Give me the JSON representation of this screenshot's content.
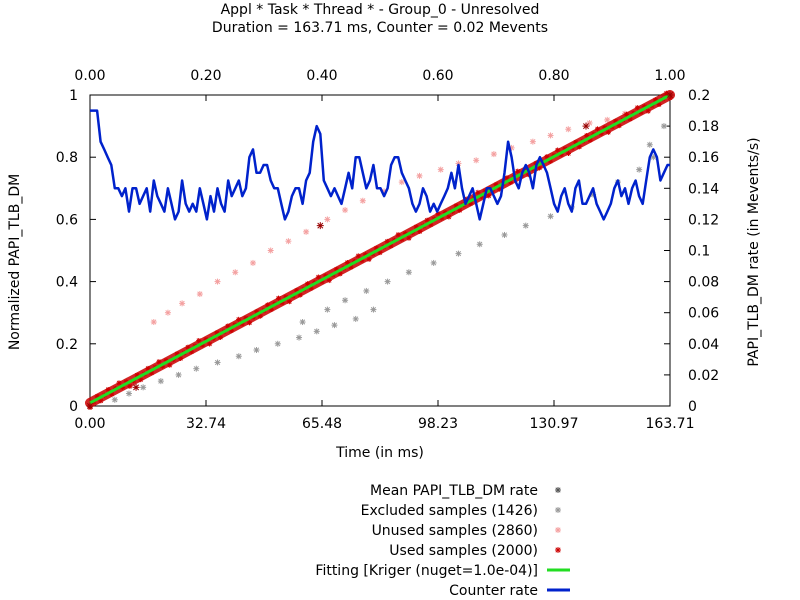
{
  "chart_data": {
    "type": "scatter",
    "title_line1": "Appl * Task * Thread * - Group_0 - Unresolved",
    "title_line2": "Duration = 163.71 ms, Counter = 0.02 Mevents",
    "xlabel": "Time (in ms)",
    "ylabel_left": "Normalized PAPI_TLB_DM",
    "ylabel_right": "PAPI_TLB_DM rate (in Mevents/s)",
    "xlim": [
      0,
      163.71
    ],
    "ylim_left": [
      0,
      1
    ],
    "ylim_right": [
      0,
      0.2
    ],
    "x_ticks": [
      "0.00",
      "32.74",
      "65.48",
      "98.23",
      "130.97",
      "163.71"
    ],
    "x2_ticks": [
      "0.00",
      "0.20",
      "0.40",
      "0.60",
      "0.80",
      "1.00"
    ],
    "y_left_ticks": [
      "0",
      "0.2",
      "0.4",
      "0.6",
      "0.8",
      "1"
    ],
    "y_right_ticks": [
      "0",
      "0.02",
      "0.04",
      "0.06",
      "0.08",
      "0.1",
      "0.12",
      "0.14",
      "0.16",
      "0.18",
      "0.2"
    ],
    "legend_position": "bottom-right-below",
    "series": [
      {
        "name": "Mean PAPI_TLB_DM rate",
        "kind": "marker",
        "color": "#555555",
        "points": []
      },
      {
        "name": "Excluded samples (1426)",
        "kind": "marker",
        "color": "#999999",
        "points": [
          [
            7,
            0.02
          ],
          [
            11,
            0.04
          ],
          [
            15,
            0.06
          ],
          [
            20,
            0.08
          ],
          [
            25,
            0.1
          ],
          [
            30,
            0.12
          ],
          [
            36,
            0.14
          ],
          [
            42,
            0.16
          ],
          [
            47,
            0.18
          ],
          [
            53,
            0.2
          ],
          [
            59,
            0.22
          ],
          [
            64,
            0.24
          ],
          [
            69,
            0.26
          ],
          [
            75,
            0.28
          ],
          [
            80,
            0.31
          ],
          [
            60,
            0.27
          ],
          [
            67,
            0.31
          ],
          [
            72,
            0.34
          ],
          [
            78,
            0.37
          ],
          [
            84,
            0.4
          ],
          [
            90,
            0.43
          ],
          [
            97,
            0.46
          ],
          [
            104,
            0.49
          ],
          [
            110,
            0.52
          ],
          [
            117,
            0.55
          ],
          [
            123,
            0.58
          ],
          [
            130,
            0.61
          ],
          [
            136,
            0.64
          ],
          [
            142,
            0.68
          ],
          [
            149,
            0.72
          ],
          [
            155,
            0.76
          ],
          [
            159,
            0.8
          ],
          [
            158,
            0.84
          ],
          [
            162,
            0.9
          ]
        ]
      },
      {
        "name": "Unused samples (2860)",
        "kind": "marker",
        "color": "#f4a0a0",
        "points": [
          [
            18,
            0.27
          ],
          [
            22,
            0.3
          ],
          [
            26,
            0.33
          ],
          [
            31,
            0.36
          ],
          [
            36,
            0.4
          ],
          [
            41,
            0.43
          ],
          [
            46,
            0.46
          ],
          [
            51,
            0.5
          ],
          [
            56,
            0.53
          ],
          [
            61,
            0.56
          ],
          [
            67,
            0.6
          ],
          [
            72,
            0.63
          ],
          [
            77,
            0.66
          ],
          [
            83,
            0.69
          ],
          [
            88,
            0.72
          ],
          [
            93,
            0.74
          ],
          [
            99,
            0.76
          ],
          [
            104,
            0.78
          ],
          [
            109,
            0.79
          ],
          [
            114,
            0.81
          ],
          [
            119,
            0.83
          ],
          [
            125,
            0.85
          ],
          [
            130,
            0.87
          ],
          [
            135,
            0.89
          ],
          [
            141,
            0.91
          ],
          [
            146,
            0.92
          ],
          [
            151,
            0.94
          ],
          [
            156,
            0.96
          ]
        ]
      },
      {
        "name": "Used samples (2000)",
        "kind": "marker",
        "color": "#cc0000",
        "points": [
          [
            0,
            0
          ],
          [
            163.71,
            1
          ],
          [
            65,
            0.58
          ],
          [
            140,
            0.9
          ],
          [
            13,
            0.06
          ]
        ]
      },
      {
        "name": "Fitting [Kriger (nuget=1.0e-04)]",
        "kind": "line",
        "color": "#22dd22",
        "points": [
          [
            0,
            0.01
          ],
          [
            163.71,
            1
          ]
        ]
      },
      {
        "name": "Counter rate",
        "kind": "line",
        "color": "#0022cc",
        "axis": "right",
        "points": [
          [
            0,
            0.19
          ],
          [
            2,
            0.19
          ],
          [
            3,
            0.17
          ],
          [
            4,
            0.165
          ],
          [
            5,
            0.16
          ],
          [
            6,
            0.155
          ],
          [
            7,
            0.14
          ],
          [
            8,
            0.14
          ],
          [
            9,
            0.135
          ],
          [
            10,
            0.14
          ],
          [
            11,
            0.125
          ],
          [
            12,
            0.14
          ],
          [
            13,
            0.14
          ],
          [
            14,
            0.13
          ],
          [
            15,
            0.135
          ],
          [
            16,
            0.14
          ],
          [
            17,
            0.125
          ],
          [
            18,
            0.145
          ],
          [
            19,
            0.135
          ],
          [
            20,
            0.13
          ],
          [
            21,
            0.125
          ],
          [
            22,
            0.14
          ],
          [
            23,
            0.13
          ],
          [
            24,
            0.12
          ],
          [
            25,
            0.125
          ],
          [
            26,
            0.145
          ],
          [
            27,
            0.13
          ],
          [
            28,
            0.125
          ],
          [
            29,
            0.13
          ],
          [
            30,
            0.125
          ],
          [
            31,
            0.14
          ],
          [
            32,
            0.13
          ],
          [
            33,
            0.12
          ],
          [
            34,
            0.135
          ],
          [
            35,
            0.125
          ],
          [
            36,
            0.14
          ],
          [
            37,
            0.13
          ],
          [
            38,
            0.125
          ],
          [
            39,
            0.145
          ],
          [
            40,
            0.135
          ],
          [
            41,
            0.14
          ],
          [
            42,
            0.145
          ],
          [
            43,
            0.135
          ],
          [
            44,
            0.14
          ],
          [
            45,
            0.16
          ],
          [
            46,
            0.165
          ],
          [
            47,
            0.15
          ],
          [
            48,
            0.15
          ],
          [
            49,
            0.155
          ],
          [
            50,
            0.155
          ],
          [
            51,
            0.145
          ],
          [
            52,
            0.14
          ],
          [
            53,
            0.14
          ],
          [
            54,
            0.13
          ],
          [
            55,
            0.12
          ],
          [
            56,
            0.125
          ],
          [
            57,
            0.135
          ],
          [
            58,
            0.14
          ],
          [
            59,
            0.14
          ],
          [
            60,
            0.13
          ],
          [
            61,
            0.145
          ],
          [
            62,
            0.15
          ],
          [
            63,
            0.17
          ],
          [
            64,
            0.18
          ],
          [
            65,
            0.175
          ],
          [
            66,
            0.145
          ],
          [
            67,
            0.14
          ],
          [
            68,
            0.135
          ],
          [
            69,
            0.14
          ],
          [
            70,
            0.135
          ],
          [
            71,
            0.13
          ],
          [
            72,
            0.14
          ],
          [
            73,
            0.15
          ],
          [
            74,
            0.14
          ],
          [
            75,
            0.16
          ],
          [
            76,
            0.16
          ],
          [
            77,
            0.15
          ],
          [
            78,
            0.14
          ],
          [
            79,
            0.145
          ],
          [
            80,
            0.155
          ],
          [
            81,
            0.14
          ],
          [
            82,
            0.14
          ],
          [
            83,
            0.135
          ],
          [
            84,
            0.14
          ],
          [
            85,
            0.155
          ],
          [
            86,
            0.16
          ],
          [
            87,
            0.16
          ],
          [
            88,
            0.15
          ],
          [
            89,
            0.145
          ],
          [
            90,
            0.14
          ],
          [
            91,
            0.13
          ],
          [
            92,
            0.125
          ],
          [
            93,
            0.13
          ],
          [
            94,
            0.14
          ],
          [
            95,
            0.135
          ],
          [
            96,
            0.125
          ],
          [
            97,
            0.13
          ],
          [
            98,
            0.125
          ],
          [
            99,
            0.13
          ],
          [
            100,
            0.135
          ],
          [
            101,
            0.14
          ],
          [
            102,
            0.15
          ],
          [
            103,
            0.14
          ],
          [
            104,
            0.155
          ],
          [
            105,
            0.14
          ],
          [
            106,
            0.13
          ],
          [
            107,
            0.135
          ],
          [
            108,
            0.14
          ],
          [
            109,
            0.13
          ],
          [
            110,
            0.12
          ],
          [
            111,
            0.13
          ],
          [
            112,
            0.14
          ],
          [
            113,
            0.14
          ],
          [
            114,
            0.135
          ],
          [
            115,
            0.13
          ],
          [
            116,
            0.135
          ],
          [
            117,
            0.15
          ],
          [
            118,
            0.17
          ],
          [
            119,
            0.16
          ],
          [
            120,
            0.145
          ],
          [
            121,
            0.14
          ],
          [
            122,
            0.15
          ],
          [
            123,
            0.155
          ],
          [
            124,
            0.15
          ],
          [
            125,
            0.14
          ],
          [
            126,
            0.155
          ],
          [
            127,
            0.16
          ],
          [
            128,
            0.155
          ],
          [
            129,
            0.15
          ],
          [
            130,
            0.14
          ],
          [
            131,
            0.13
          ],
          [
            132,
            0.125
          ],
          [
            133,
            0.135
          ],
          [
            134,
            0.14
          ],
          [
            135,
            0.13
          ],
          [
            136,
            0.125
          ],
          [
            137,
            0.14
          ],
          [
            138,
            0.145
          ],
          [
            139,
            0.13
          ],
          [
            140,
            0.13
          ],
          [
            141,
            0.135
          ],
          [
            142,
            0.14
          ],
          [
            143,
            0.13
          ],
          [
            144,
            0.125
          ],
          [
            145,
            0.12
          ],
          [
            146,
            0.125
          ],
          [
            147,
            0.13
          ],
          [
            148,
            0.14
          ],
          [
            149,
            0.145
          ],
          [
            150,
            0.135
          ],
          [
            151,
            0.14
          ],
          [
            152,
            0.13
          ],
          [
            153,
            0.14
          ],
          [
            154,
            0.145
          ],
          [
            155,
            0.135
          ],
          [
            156,
            0.13
          ],
          [
            157,
            0.145
          ],
          [
            158,
            0.16
          ],
          [
            159,
            0.165
          ],
          [
            160,
            0.16
          ],
          [
            161,
            0.145
          ],
          [
            162,
            0.15
          ],
          [
            163,
            0.155
          ],
          [
            163.71,
            0.155
          ]
        ]
      }
    ]
  }
}
